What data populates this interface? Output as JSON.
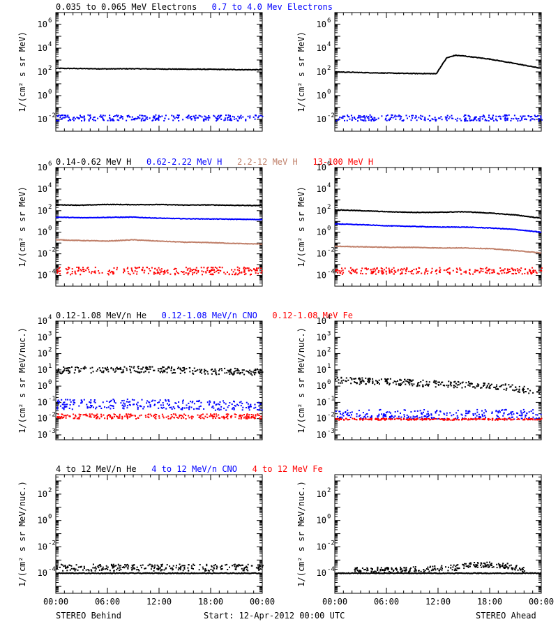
{
  "colors": {
    "black": "#000000",
    "blue": "#0000ff",
    "brown": "#c0806a",
    "red": "#ff0000",
    "axis": "#000000"
  },
  "footer": {
    "left": "STEREO Behind",
    "center": "Start: 12-Apr-2012 00:00 UTC",
    "right": "STEREO Ahead"
  },
  "x_tick_labels": [
    "00:00",
    "06:00",
    "12:00",
    "18:00",
    "00:00"
  ],
  "chart_data": [
    {
      "type": "scatter",
      "row": 0,
      "col": 0,
      "ylabel": "1/(cm² s sr MeV)",
      "yscale": "log",
      "ylim": [
        0.001,
        10000000
      ],
      "xlim": [
        0,
        24
      ],
      "yticks": [
        {
          "exp": 6
        },
        {
          "exp": 4
        },
        {
          "exp": 2
        },
        {
          "exp": 0
        },
        {
          "exp": -2
        }
      ],
      "legend": [
        {
          "text": "0.035 to 0.065 MeV Electrons",
          "color": "#000000"
        },
        {
          "text": "0.7 to 4.0 Mev Electrons",
          "color": "#0000ff"
        }
      ],
      "series": [
        {
          "name": "0.035 to 0.065 MeV Electrons",
          "color": "#000000",
          "style": "line",
          "x": [
            0,
            3,
            6,
            9,
            12,
            15,
            18,
            21,
            24
          ],
          "y": [
            200,
            190,
            180,
            185,
            175,
            170,
            165,
            155,
            150
          ]
        },
        {
          "name": "0.7 to 4.0 Mev Electrons",
          "color": "#0000ff",
          "style": "dots",
          "x": [
            0,
            6,
            12,
            18,
            24
          ],
          "y": [
            0.015,
            0.015,
            0.015,
            0.015,
            0.015
          ],
          "spread": 0.25
        }
      ]
    },
    {
      "type": "scatter",
      "row": 0,
      "col": 1,
      "ylabel": "1/(cm² s sr MeV)",
      "yscale": "log",
      "ylim": [
        0.001,
        10000000
      ],
      "xlim": [
        0,
        24
      ],
      "yticks": [
        {
          "exp": 6
        },
        {
          "exp": 4
        },
        {
          "exp": 2
        },
        {
          "exp": 0
        },
        {
          "exp": -2
        }
      ],
      "legend": [],
      "series": [
        {
          "name": "0.035 to 0.065 MeV Electrons",
          "color": "#000000",
          "style": "line",
          "x": [
            0,
            4,
            8,
            11.8,
            12.2,
            13,
            14,
            15,
            18,
            21,
            24
          ],
          "y": [
            100,
            85,
            75,
            70,
            200,
            1500,
            2500,
            2200,
            1200,
            500,
            200
          ]
        },
        {
          "name": "0.7 to 4.0 Mev Electrons",
          "color": "#0000ff",
          "style": "dots",
          "x": [
            0,
            6,
            12,
            18,
            24
          ],
          "y": [
            0.015,
            0.015,
            0.015,
            0.015,
            0.015
          ],
          "spread": 0.25
        }
      ]
    },
    {
      "type": "scatter",
      "row": 1,
      "col": 0,
      "ylabel": "1/(cm² s sr MeV)",
      "yscale": "log",
      "ylim": [
        1e-05,
        1000000
      ],
      "xlim": [
        0,
        24
      ],
      "yticks": [
        {
          "exp": 6
        },
        {
          "exp": 4
        },
        {
          "exp": 2
        },
        {
          "exp": 0
        },
        {
          "exp": -2
        },
        {
          "exp": -4
        }
      ],
      "legend": [
        {
          "text": "0.14-0.62 MeV H",
          "color": "#000000"
        },
        {
          "text": "0.62-2.22 MeV H",
          "color": "#0000ff"
        },
        {
          "text": "2.2-12 MeV H",
          "color": "#c0806a"
        },
        {
          "text": "13-100 MeV H",
          "color": "#ff0000"
        }
      ],
      "series": [
        {
          "name": "0.14-0.62 MeV H",
          "color": "#000000",
          "style": "line",
          "x": [
            0,
            3,
            6,
            9,
            12,
            15,
            18,
            21,
            24
          ],
          "y": [
            350,
            320,
            380,
            360,
            370,
            330,
            340,
            310,
            300
          ]
        },
        {
          "name": "0.62-2.22 MeV H",
          "color": "#0000ff",
          "style": "line",
          "x": [
            0,
            3,
            6,
            9,
            12,
            15,
            18,
            21,
            24
          ],
          "y": [
            25,
            22,
            24,
            25,
            20,
            18,
            17,
            16,
            15
          ]
        },
        {
          "name": "2.2-12 MeV H",
          "color": "#c0806a",
          "style": "line",
          "x": [
            0,
            3,
            6,
            9,
            12,
            15,
            18,
            21,
            24
          ],
          "y": [
            0.2,
            0.17,
            0.15,
            0.2,
            0.15,
            0.12,
            0.11,
            0.09,
            0.08
          ]
        },
        {
          "name": "13-100 MeV H",
          "color": "#ff0000",
          "style": "dots",
          "x": [
            0,
            6,
            12,
            18,
            24
          ],
          "y": [
            0.0003,
            0.0003,
            0.0003,
            0.0003,
            0.0003
          ],
          "spread": 0.35
        }
      ]
    },
    {
      "type": "scatter",
      "row": 1,
      "col": 1,
      "ylabel": "1/(cm² s sr MeV)",
      "yscale": "log",
      "ylim": [
        1e-05,
        1000000
      ],
      "xlim": [
        0,
        24
      ],
      "yticks": [
        {
          "exp": 6
        },
        {
          "exp": 4
        },
        {
          "exp": 2
        },
        {
          "exp": 0
        },
        {
          "exp": -2
        },
        {
          "exp": -4
        }
      ],
      "legend": [],
      "series": [
        {
          "name": "0.14-0.62 MeV H",
          "color": "#000000",
          "style": "line",
          "x": [
            0,
            3,
            6,
            9,
            12,
            15,
            18,
            21,
            24
          ],
          "y": [
            120,
            100,
            80,
            70,
            70,
            80,
            60,
            40,
            20
          ]
        },
        {
          "name": "0.62-2.22 MeV H",
          "color": "#0000ff",
          "style": "line",
          "x": [
            0,
            3,
            6,
            9,
            12,
            15,
            18,
            21,
            24
          ],
          "y": [
            6,
            5,
            4,
            3.5,
            3,
            3,
            2.5,
            1.8,
            1
          ]
        },
        {
          "name": "2.2-12 MeV H",
          "color": "#c0806a",
          "style": "line",
          "x": [
            0,
            3,
            6,
            9,
            12,
            15,
            18,
            21,
            24
          ],
          "y": [
            0.05,
            0.045,
            0.04,
            0.04,
            0.035,
            0.035,
            0.03,
            0.02,
            0.012
          ]
        },
        {
          "name": "13-100 MeV H",
          "color": "#ff0000",
          "style": "dots",
          "x": [
            0,
            6,
            12,
            18,
            24
          ],
          "y": [
            0.0003,
            0.0003,
            0.0003,
            0.0003,
            0.0003
          ],
          "spread": 0.3
        }
      ]
    },
    {
      "type": "scatter",
      "row": 2,
      "col": 0,
      "ylabel": "1/(cm² s sr MeV/nuc.)",
      "yscale": "log",
      "ylim": [
        0.0005,
        10000
      ],
      "xlim": [
        0,
        24
      ],
      "yticks": [
        {
          "exp": 4
        },
        {
          "exp": 3
        },
        {
          "exp": 2
        },
        {
          "exp": 1
        },
        {
          "exp": 0
        },
        {
          "exp": -1
        },
        {
          "exp": -2
        },
        {
          "exp": -3
        }
      ],
      "legend": [
        {
          "text": "0.12-1.08 MeV/n He",
          "color": "#000000"
        },
        {
          "text": "0.12-1.08 MeV/n CNO",
          "color": "#0000ff"
        },
        {
          "text": "0.12-1.08 MeV Fe",
          "color": "#ff0000"
        }
      ],
      "series": [
        {
          "name": "0.12-1.08 MeV/n He",
          "color": "#000000",
          "style": "dots",
          "x": [
            0,
            6,
            12,
            18,
            24
          ],
          "y": [
            10,
            12,
            11,
            9,
            8
          ],
          "spread": 0.2
        },
        {
          "name": "0.12-1.08 MeV/n CNO",
          "color": "#0000ff",
          "style": "dots",
          "x": [
            0,
            6,
            12,
            18,
            24
          ],
          "y": [
            0.08,
            0.09,
            0.08,
            0.07,
            0.07
          ],
          "spread": 0.3
        },
        {
          "name": "0.12-1.08 MeV Fe",
          "color": "#ff0000",
          "style": "dots",
          "x": [
            0,
            6,
            12,
            18,
            24
          ],
          "y": [
            0.015,
            0.015,
            0.015,
            0.015,
            0.015
          ],
          "spread": 0.15
        }
      ]
    },
    {
      "type": "scatter",
      "row": 2,
      "col": 1,
      "ylabel": "1/(cm² s sr MeV/nuc.)",
      "yscale": "log",
      "ylim": [
        0.0005,
        10000
      ],
      "xlim": [
        0,
        24
      ],
      "yticks": [
        {
          "exp": 4
        },
        {
          "exp": 3
        },
        {
          "exp": 2
        },
        {
          "exp": 1
        },
        {
          "exp": 0
        },
        {
          "exp": -1
        },
        {
          "exp": -2
        },
        {
          "exp": -3
        }
      ],
      "legend": [],
      "series": [
        {
          "name": "0.12-1.08 MeV/n He",
          "color": "#000000",
          "style": "dots",
          "x": [
            0,
            6,
            12,
            18,
            24
          ],
          "y": [
            2.5,
            2,
            1.5,
            1.2,
            0.5
          ],
          "spread": 0.2
        },
        {
          "name": "0.12-1.08 MeV/n CNO",
          "color": "#0000ff",
          "style": "dots",
          "x": [
            0,
            6,
            12,
            18,
            24
          ],
          "y": [
            0.02,
            0.02,
            0.02,
            0.02,
            0.02
          ],
          "spread": 0.3
        },
        {
          "name": "0.12-1.08 MeV Fe",
          "color": "#ff0000",
          "style": "dots",
          "x": [
            0,
            6,
            12,
            18,
            24
          ],
          "y": [
            0.01,
            0.01,
            0.01,
            0.01,
            0.01
          ],
          "spread": 0.05
        }
      ]
    },
    {
      "type": "scatter",
      "row": 3,
      "col": 0,
      "ylabel": "1/(cm² s sr MeV/nuc.)",
      "yscale": "log",
      "ylim": [
        3e-06,
        3000
      ],
      "xlim": [
        0,
        24
      ],
      "yticks": [
        {
          "exp": 2
        },
        {
          "exp": 0
        },
        {
          "exp": -2
        },
        {
          "exp": -4
        }
      ],
      "legend": [
        {
          "text": "4 to 12 MeV/n He",
          "color": "#000000"
        },
        {
          "text": "4 to 12 MeV/n CNO",
          "color": "#0000ff"
        },
        {
          "text": "4 to 12 MeV Fe",
          "color": "#ff0000"
        }
      ],
      "series": [
        {
          "name": "4 to 12 MeV/n He",
          "color": "#000000",
          "style": "dots",
          "x": [
            0,
            6,
            12,
            18,
            24
          ],
          "y": [
            0.0003,
            0.0003,
            0.0003,
            0.0003,
            0.0003
          ],
          "spread": 0.25
        },
        {
          "name": "4 to 12 MeV/n CNO",
          "color": "#000000",
          "style": "line",
          "x": [
            0,
            24
          ],
          "y": [
            0.0001,
            0.0001
          ]
        }
      ]
    },
    {
      "type": "scatter",
      "row": 3,
      "col": 1,
      "ylabel": "1/(cm² s sr MeV/nuc.)",
      "yscale": "log",
      "ylim": [
        3e-06,
        3000
      ],
      "xlim": [
        0,
        24
      ],
      "yticks": [
        {
          "exp": 2
        },
        {
          "exp": 0
        },
        {
          "exp": -2
        },
        {
          "exp": -4
        }
      ],
      "legend": [],
      "series": [
        {
          "name": "4 to 12 MeV/n He",
          "color": "#000000",
          "style": "dots",
          "x": [
            2,
            8,
            14,
            16,
            18,
            20,
            22
          ],
          "y": [
            0.0002,
            0.0002,
            0.0003,
            0.0005,
            0.0005,
            0.0004,
            0.0002
          ],
          "spread": 0.2
        },
        {
          "name": "4 to 12 MeV/n CNO",
          "color": "#000000",
          "style": "line",
          "x": [
            0,
            24
          ],
          "y": [
            0.0001,
            0.0001
          ]
        }
      ]
    }
  ]
}
